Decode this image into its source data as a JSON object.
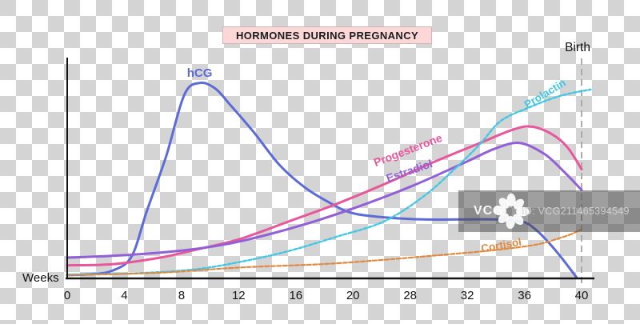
{
  "title": "HORMONES DURING PREGNANCY",
  "axis": {
    "x_label": "Weeks",
    "birth_label": "Birth",
    "x_tick_labels": [
      "0",
      "4",
      "8",
      "12",
      "16",
      "20",
      "28",
      "32",
      "36",
      "40"
    ]
  },
  "watermark": {
    "brand": "VCG",
    "id_text": "ID: VCG211465394549"
  },
  "colors": {
    "axis": "#141414",
    "tick_text": "#141414",
    "birth_line": "#ababab",
    "title_bg": "#fbd8d7",
    "checker_gray": "#d4d4d4",
    "hcg": "#5c6bd5",
    "progesterone": "#e8569b",
    "estradiol": "#9160d6",
    "prolactin": "#41c7e6",
    "cortisol": "#df8a43"
  },
  "chart_data": {
    "type": "line",
    "title": "HORMONES DURING PREGNANCY",
    "xlabel": "Weeks",
    "ylabel": "",
    "x_range": [
      0,
      40
    ],
    "y_axis": "unlabeled relative hormone level (0-100)",
    "grid": false,
    "legend": "inline labels on curves",
    "annotations": [
      {
        "text": "Birth",
        "x": 40,
        "style": "vertical dashed line"
      }
    ],
    "x_ticks_note": "ticks evenly spaced; printed labels skip 24",
    "series": [
      {
        "name": "hCG",
        "color": "#5c6bd5",
        "style": "solid",
        "width": 3,
        "label": {
          "text": "hCG",
          "week": 10.3,
          "level": 92.3,
          "rotate": 0,
          "size": 15
        },
        "points": [
          [
            0,
            1.5
          ],
          [
            2,
            2
          ],
          [
            3.5,
            3.5
          ],
          [
            5,
            10
          ],
          [
            6.2,
            31
          ],
          [
            7.7,
            56
          ],
          [
            9.1,
            84
          ],
          [
            10.3,
            89.5
          ],
          [
            11.5,
            87
          ],
          [
            12.6,
            80
          ],
          [
            14.5,
            67
          ],
          [
            16.5,
            52
          ],
          [
            18.4,
            42
          ],
          [
            20.3,
            35
          ],
          [
            22.1,
            30
          ],
          [
            24.6,
            28
          ],
          [
            27.7,
            27
          ],
          [
            30.9,
            27
          ],
          [
            33.3,
            27
          ],
          [
            35.4,
            26
          ],
          [
            36.5,
            22
          ],
          [
            37.5,
            16
          ],
          [
            38.5,
            9
          ],
          [
            39.6,
            0.5
          ]
        ]
      },
      {
        "name": "Progesterone",
        "color": "#e8569b",
        "style": "solid",
        "width": 3,
        "label": {
          "text": "Progesterone",
          "week": 26.6,
          "level": 57.1,
          "rotate": -21,
          "size": 14
        },
        "points": [
          [
            0,
            6
          ],
          [
            3.5,
            6.5
          ],
          [
            7.2,
            9.5
          ],
          [
            9.9,
            13
          ],
          [
            13.4,
            18
          ],
          [
            17.2,
            26
          ],
          [
            20.9,
            34
          ],
          [
            24.6,
            43
          ],
          [
            28.4,
            53
          ],
          [
            32.1,
            62
          ],
          [
            34.6,
            68
          ],
          [
            36.1,
            69.5
          ],
          [
            37.7,
            66
          ],
          [
            38.9,
            60
          ],
          [
            40,
            50
          ]
        ]
      },
      {
        "name": "Estradiol",
        "color": "#9160d6",
        "style": "solid",
        "width": 3,
        "label": {
          "text": "Estradiol",
          "week": 26.7,
          "level": 47.6,
          "rotate": -19,
          "size": 14
        },
        "points": [
          [
            0,
            9.5
          ],
          [
            4.1,
            10.5
          ],
          [
            8.5,
            12.5
          ],
          [
            12.2,
            15.5
          ],
          [
            15.9,
            20.5
          ],
          [
            19.7,
            27
          ],
          [
            23.4,
            34.5
          ],
          [
            27.1,
            43
          ],
          [
            30.9,
            53
          ],
          [
            33.3,
            59.5
          ],
          [
            35.2,
            62
          ],
          [
            37.1,
            57
          ],
          [
            38.6,
            49
          ],
          [
            40,
            40.5
          ]
        ]
      },
      {
        "name": "Prolactin",
        "color": "#41c7e6",
        "style": "dashed",
        "dash": "4 2.5",
        "width": 2.4,
        "label": {
          "text": "Prolactin",
          "week": 37.3,
          "level": 83.2,
          "rotate": -31,
          "size": 13.5
        },
        "points": [
          [
            0,
            1.8
          ],
          [
            4.7,
            2.2
          ],
          [
            9.7,
            4
          ],
          [
            13.4,
            7.5
          ],
          [
            17.2,
            12.5
          ],
          [
            20.9,
            19
          ],
          [
            24.6,
            26
          ],
          [
            27.7,
            37.5
          ],
          [
            30.2,
            50.5
          ],
          [
            32.1,
            61.5
          ],
          [
            33.7,
            72
          ],
          [
            35.8,
            78
          ],
          [
            38.3,
            83.5
          ],
          [
            40.7,
            86.5
          ]
        ]
      },
      {
        "name": "Cortisol",
        "color": "#df8a43",
        "style": "dashed",
        "dash": "5 2.5",
        "width": 2.2,
        "label": {
          "text": "Cortisol",
          "week": 33.8,
          "level": 13.6,
          "rotate": -10,
          "size": 13.5
        },
        "points": [
          [
            0,
            1.5
          ],
          [
            7.2,
            2.6
          ],
          [
            13.4,
            5
          ],
          [
            19.7,
            6.5
          ],
          [
            24.6,
            8.5
          ],
          [
            29.6,
            11
          ],
          [
            33.3,
            13
          ],
          [
            36.5,
            15.5
          ],
          [
            38.3,
            18.5
          ],
          [
            39.3,
            20.5
          ],
          [
            40,
            22.5
          ]
        ]
      }
    ]
  }
}
